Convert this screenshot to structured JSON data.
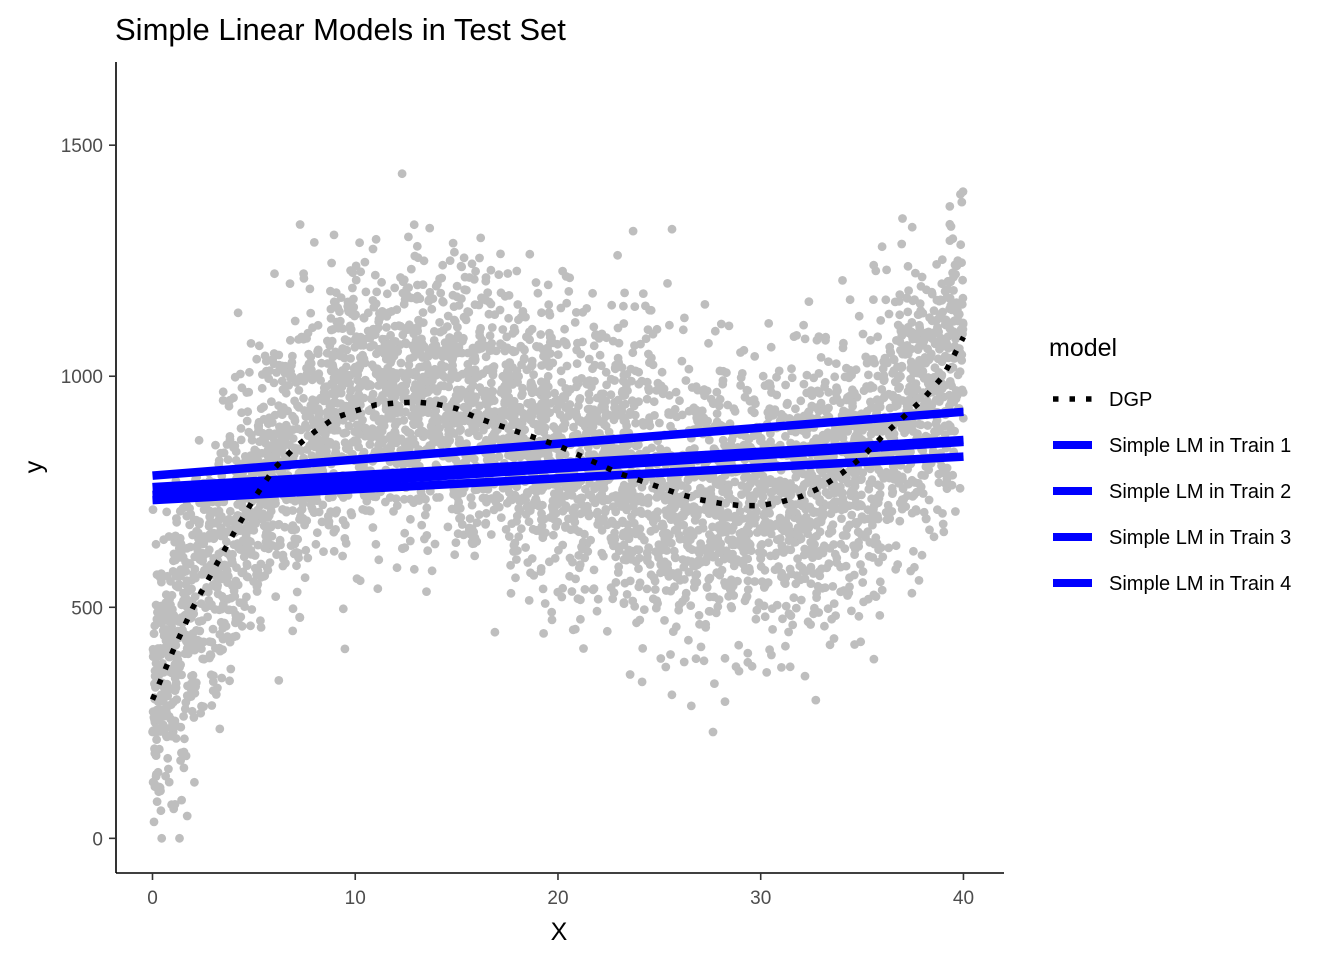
{
  "chart_data": {
    "type": "scatter",
    "title": "Simple Linear Models in Test Set",
    "xlabel": "X",
    "ylabel": "y",
    "xlim": [
      -1.8,
      42.0
    ],
    "ylim": [
      -75,
      1680
    ],
    "x_ticks": [
      0,
      10,
      20,
      30,
      40
    ],
    "y_ticks": [
      0,
      500,
      1000,
      1500
    ],
    "grid": false,
    "legend": {
      "title": "model",
      "placement": "right",
      "entries": [
        {
          "label": "DGP",
          "style": "dotted",
          "color": "#000000"
        },
        {
          "label": "Simple LM in Train 1",
          "style": "solid",
          "color": "#0000FF"
        },
        {
          "label": "Simple LM in Train 2",
          "style": "solid",
          "color": "#0000FF"
        },
        {
          "label": "Simple LM in Train 3",
          "style": "solid",
          "color": "#0000FF"
        },
        {
          "label": "Simple LM in Train 4",
          "style": "solid",
          "color": "#0000FF"
        }
      ]
    },
    "scatter": {
      "color": "#BEBEBE",
      "n_points": 5000,
      "x_range": [
        0,
        40
      ],
      "y_range": [
        0,
        1460
      ]
    },
    "series": [
      {
        "name": "DGP",
        "style": "dotted",
        "color": "#000000",
        "x": [
          0,
          1,
          2,
          3,
          4,
          5,
          6,
          7,
          8,
          9,
          10,
          11,
          12,
          13,
          14,
          15,
          16,
          17,
          18,
          19,
          20,
          21,
          22,
          23,
          24,
          25,
          26,
          27,
          28,
          29,
          30,
          31,
          32,
          33,
          34,
          35,
          36,
          37,
          38,
          39,
          40
        ],
        "y": [
          300,
          405,
          500,
          580,
          660,
          735,
          800,
          845,
          880,
          910,
          925,
          938,
          942,
          944,
          940,
          930,
          910,
          895,
          880,
          865,
          850,
          830,
          810,
          790,
          775,
          760,
          745,
          733,
          725,
          720,
          720,
          728,
          740,
          760,
          790,
          825,
          870,
          910,
          950,
          1000,
          1085
        ]
      },
      {
        "name": "Simple LM in Train 1",
        "style": "solid",
        "color": "#0000FF",
        "x": [
          0,
          40
        ],
        "y": [
          785,
          923
        ]
      },
      {
        "name": "Simple LM in Train 2",
        "style": "solid",
        "color": "#0000FF",
        "x": [
          0,
          40
        ],
        "y": [
          760,
          862
        ]
      },
      {
        "name": "Simple LM in Train 3",
        "style": "solid",
        "color": "#0000FF",
        "x": [
          0,
          40
        ],
        "y": [
          743,
          858
        ]
      },
      {
        "name": "Simple LM in Train 4",
        "style": "solid",
        "color": "#0000FF",
        "x": [
          0,
          40
        ],
        "y": [
          732,
          826
        ]
      }
    ]
  }
}
